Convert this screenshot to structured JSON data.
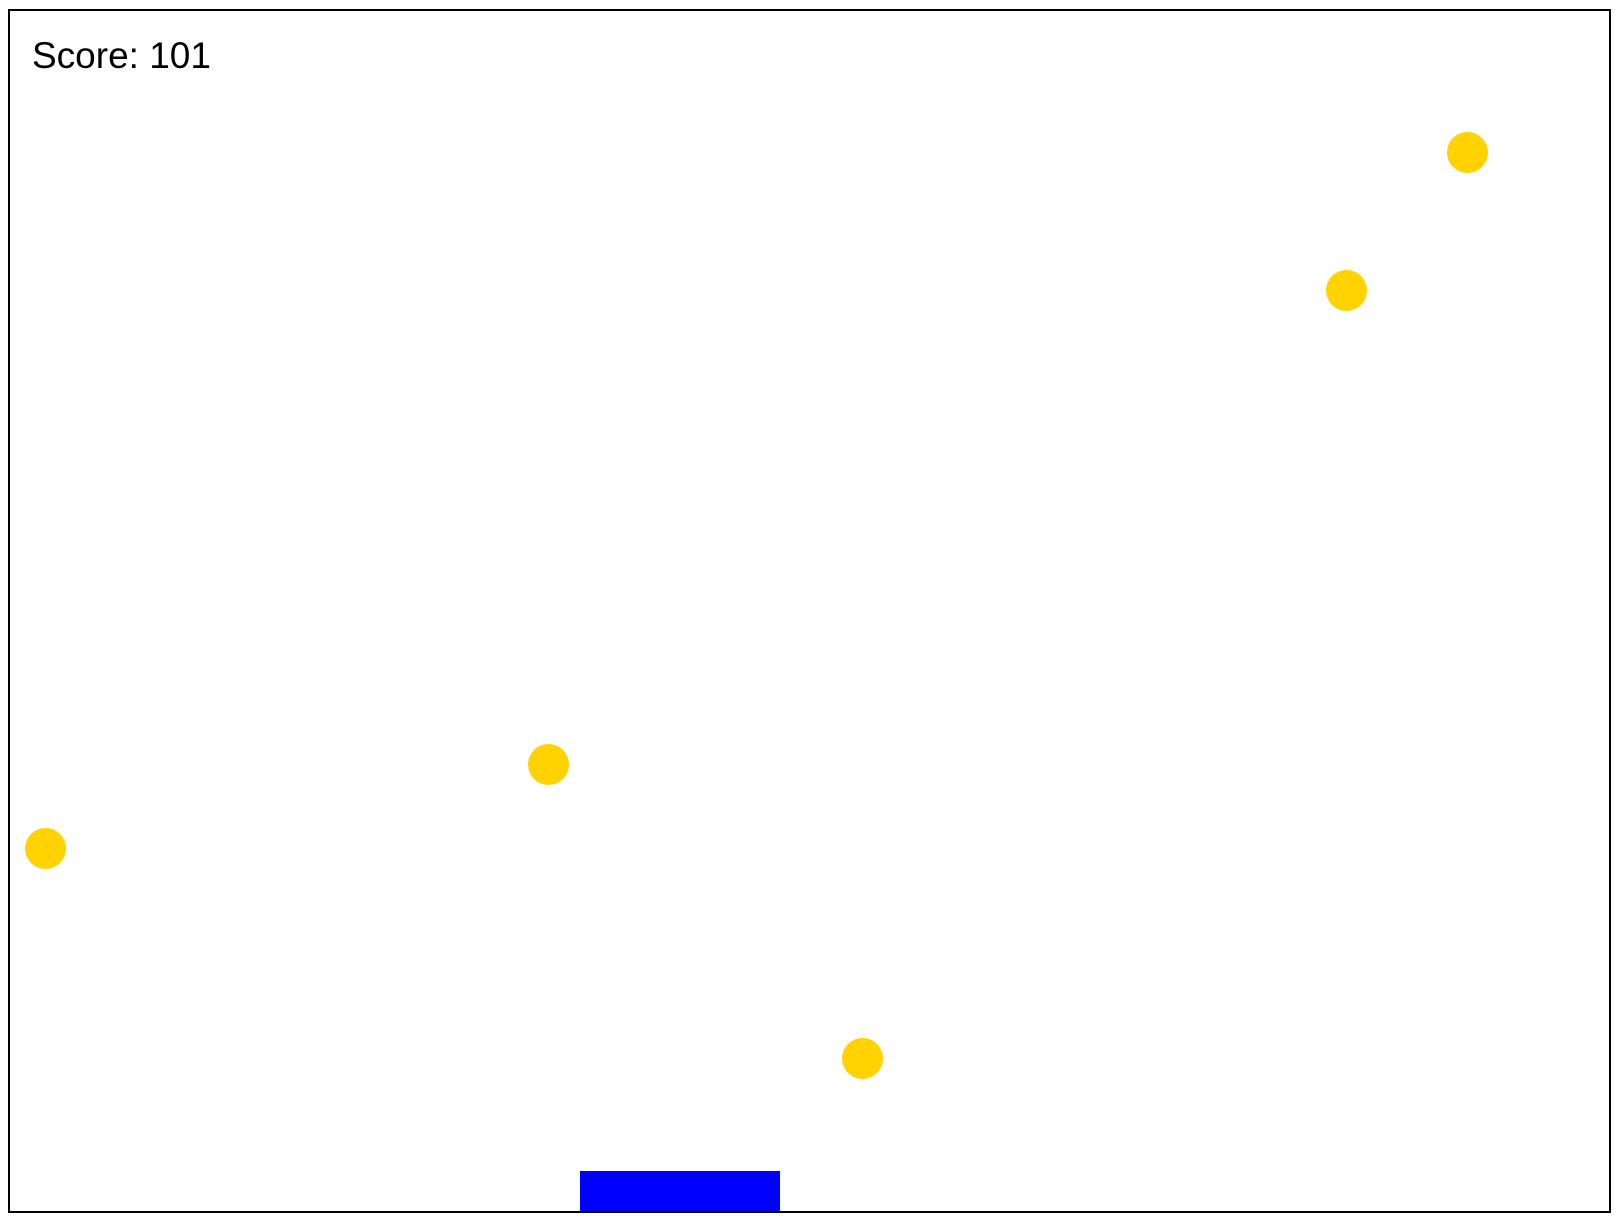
{
  "hud": {
    "score_label": "Score:",
    "score_value": "101"
  },
  "colors": {
    "ball": "#FFD200",
    "paddle": "#0000FF",
    "border": "#000000",
    "background": "#FFFFFF"
  },
  "objects": {
    "ball_count": 5,
    "paddle_count": 1
  }
}
